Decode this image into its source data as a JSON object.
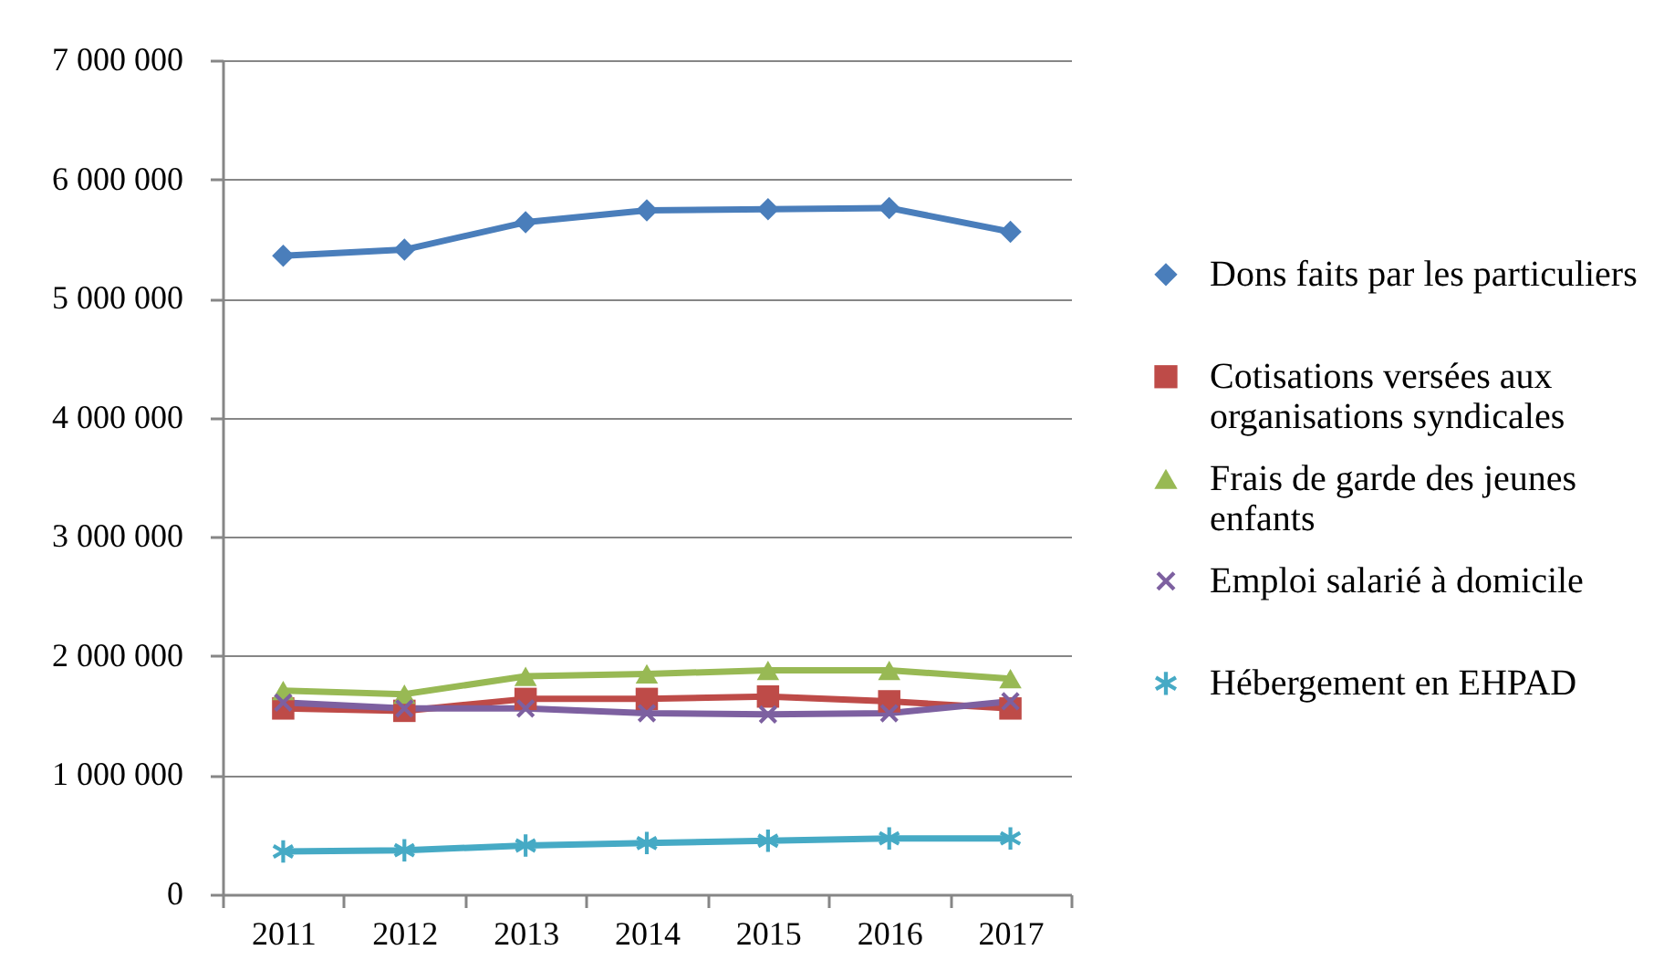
{
  "chart_data": {
    "type": "line",
    "categories": [
      "2011",
      "2012",
      "2013",
      "2014",
      "2015",
      "2016",
      "2017"
    ],
    "series": [
      {
        "name": "Dons faits par les particuliers",
        "color": "#4a7ebb",
        "marker": "diamond",
        "values": [
          5360000,
          5410000,
          5640000,
          5740000,
          5750000,
          5760000,
          5560000
        ]
      },
      {
        "name": "Cotisations versées aux organisations syndicales",
        "color": "#be4b48",
        "marker": "square",
        "values": [
          1560000,
          1540000,
          1640000,
          1640000,
          1660000,
          1620000,
          1560000
        ]
      },
      {
        "name": "Frais de garde des jeunes enfants",
        "color": "#98b954",
        "marker": "triangle",
        "values": [
          1710000,
          1680000,
          1830000,
          1850000,
          1880000,
          1880000,
          1810000
        ]
      },
      {
        "name": "Emploi salarié à domicile",
        "color": "#7d60a0",
        "marker": "cross",
        "values": [
          1610000,
          1560000,
          1560000,
          1520000,
          1510000,
          1520000,
          1620000
        ]
      },
      {
        "name": "Hébergement en EHPAD",
        "color": "#46aac5",
        "marker": "star",
        "values": [
          360000,
          370000,
          410000,
          430000,
          450000,
          470000,
          470000
        ]
      }
    ],
    "ylim": [
      0,
      7000000
    ],
    "yticks": [
      0,
      {
        "value": 1000000,
        "label": "1 000 000"
      },
      {
        "value": 2000000,
        "label": "2 000 000"
      },
      {
        "value": 3000000,
        "label": "3 000 000"
      },
      {
        "value": 4000000,
        "label": "4 000 000"
      },
      {
        "value": 5000000,
        "label": "5 000 000"
      },
      {
        "value": 6000000,
        "label": "6 000 000"
      },
      {
        "value": 7000000,
        "label": "7 000 000"
      }
    ],
    "grid": "y",
    "legend": "right",
    "line_style": "solid"
  }
}
